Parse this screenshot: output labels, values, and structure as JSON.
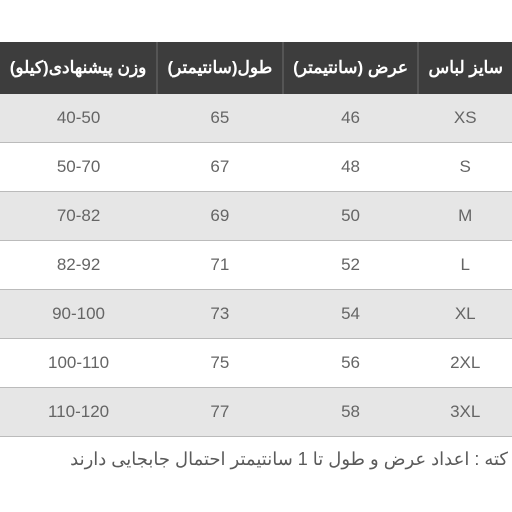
{
  "table": {
    "columns": [
      "سایز لباس",
      "عرض (سانتیمتر)",
      "طول(سانتیمتر)",
      "وزن پیشنهادی(کیلو)"
    ],
    "rows": [
      [
        "XS",
        "46",
        "65",
        "40-50"
      ],
      [
        "S",
        "48",
        "67",
        "50-70"
      ],
      [
        "M",
        "50",
        "69",
        "70-82"
      ],
      [
        "L",
        "52",
        "71",
        "82-92"
      ],
      [
        "XL",
        "54",
        "73",
        "90-100"
      ],
      [
        "2XL",
        "56",
        "75",
        "100-110"
      ],
      [
        "3XL",
        "58",
        "77",
        "110-120"
      ]
    ],
    "header_bg": "#3d3d3d",
    "header_text_color": "#ffffff",
    "row_alt_bg": "#e6e6e6",
    "row_bg": "#ffffff",
    "cell_text_color": "#656565",
    "border_color": "#bbbbbb",
    "header_fontsize": 17,
    "cell_fontsize": 17
  },
  "note": "کته : اعداد عرض و طول تا 1 سانتیمتر احتمال جابجایی دارند"
}
